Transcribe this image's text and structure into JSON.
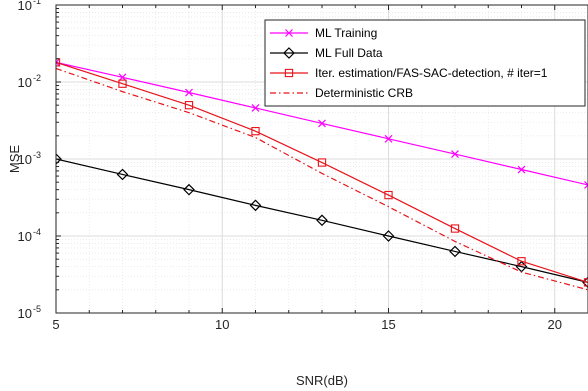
{
  "chart_data": {
    "type": "line",
    "xlabel": "SNR(dB)",
    "ylabel": "MSE",
    "xlim": [
      5,
      21
    ],
    "ylim": [
      1e-05,
      0.1
    ],
    "yscale": "log",
    "grid": true,
    "legend_position": "top-right",
    "x_ticks": [
      5,
      10,
      15,
      20
    ],
    "y_ticks": [
      {
        "base": "10",
        "exp": "-5",
        "value": 1e-05
      },
      {
        "base": "10",
        "exp": "-4",
        "value": 0.0001
      },
      {
        "base": "10",
        "exp": "-3",
        "value": 0.001
      },
      {
        "base": "10",
        "exp": "-2",
        "value": 0.01
      },
      {
        "base": "10",
        "exp": "-1",
        "value": 0.1
      }
    ],
    "series": [
      {
        "name": "ML Training",
        "color": "#ff00ff",
        "marker": "x",
        "dash": "solid",
        "x": [
          5,
          7,
          9,
          11,
          13,
          15,
          17,
          19,
          21
        ],
        "y": [
          0.018,
          0.0115,
          0.0073,
          0.0046,
          0.0029,
          0.00183,
          0.00116,
          0.00073,
          0.00046
        ]
      },
      {
        "name": "ML Full Data",
        "color": "#000000",
        "marker": "diamond",
        "dash": "solid",
        "x": [
          5,
          7,
          9,
          11,
          13,
          15,
          17,
          19,
          21
        ],
        "y": [
          0.001,
          0.00063,
          0.0004,
          0.00025,
          0.00016,
          0.0001,
          6.3e-05,
          4e-05,
          2.5e-05
        ]
      },
      {
        "name": "Iter. estimation/FAS-SAC-detection, # iter=1",
        "color": "#e8141c",
        "marker": "square",
        "dash": "solid",
        "x": [
          5,
          7,
          9,
          11,
          13,
          15,
          17,
          19,
          21
        ],
        "y": [
          0.018,
          0.0095,
          0.005,
          0.0023,
          0.0009,
          0.00034,
          0.000125,
          4.7e-05,
          2.5e-05
        ]
      },
      {
        "name": "Deterministic CRB",
        "color": "#e8141c",
        "marker": "none",
        "dash": "dashdot",
        "x": [
          5,
          7,
          9,
          11,
          13,
          15,
          17,
          19,
          21
        ],
        "y": [
          0.015,
          0.0075,
          0.004,
          0.0019,
          0.00065,
          0.00024,
          8.5e-05,
          3.4e-05,
          2e-05
        ]
      }
    ]
  }
}
